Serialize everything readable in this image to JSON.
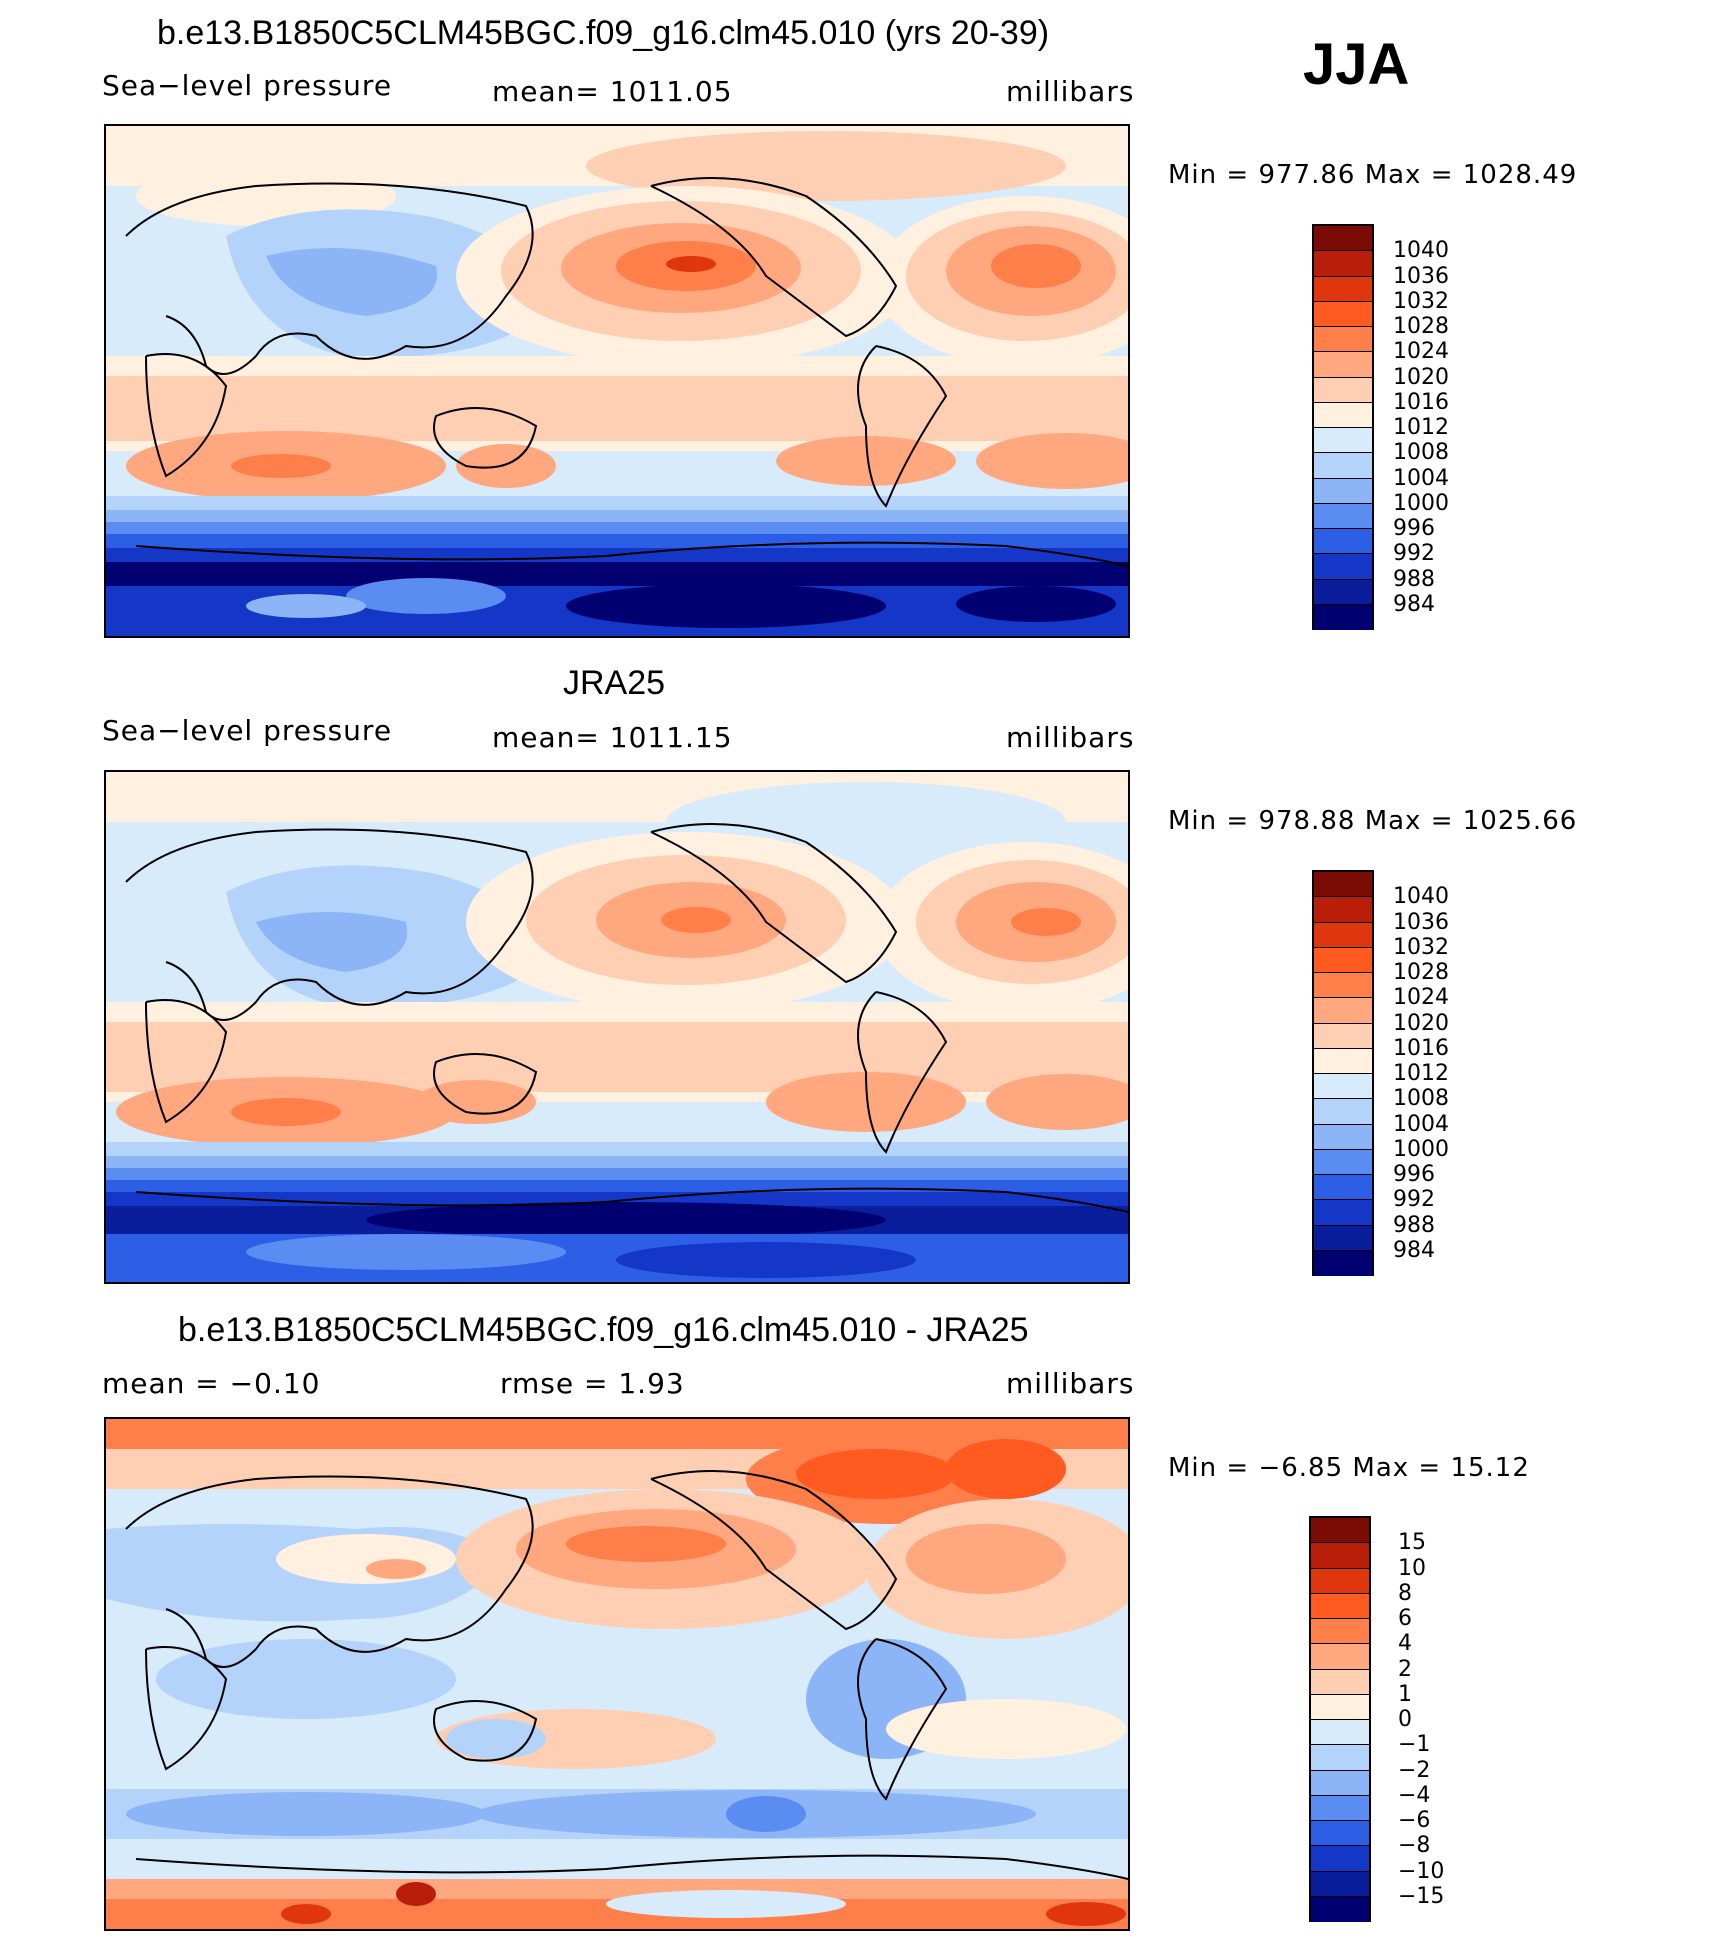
{
  "season_label": "JJA",
  "panels": [
    {
      "title": "b.e13.B1850C5CLM45BGC.f09_g16.clm45.010 (yrs 20-39)",
      "left_label": "Sea−level pressure",
      "center_label": "mean=  1011.05",
      "right_label": "millibars",
      "minmax": "Min  =  977.86  Max  =  1028.49"
    },
    {
      "title": "JRA25",
      "left_label": "Sea−level pressure",
      "center_label": "mean=  1011.15",
      "right_label": "millibars",
      "minmax": "Min  =  978.88  Max  =  1025.66"
    },
    {
      "title": "b.e13.B1850C5CLM45BGC.f09_g16.clm45.010 - JRA25",
      "left_label": "mean  =    −0.10",
      "center_label": "rmse  =     1.93",
      "right_label": "millibars",
      "minmax": "Min  =    −6.85  Max  =    15.12"
    }
  ],
  "colorbars": {
    "pressure": {
      "labels": [
        "1040",
        "1036",
        "1032",
        "1028",
        "1024",
        "1020",
        "1016",
        "1012",
        "1008",
        "1004",
        "1000",
        "996",
        "992",
        "988",
        "984"
      ],
      "colors": [
        "#7a0c05",
        "#b81e0a",
        "#e0360e",
        "#ff5a20",
        "#ff7f4a",
        "#ffa880",
        "#ffcfb4",
        "#fff0e0",
        "#d7ebfb",
        "#b4d3fa",
        "#8cb5f7",
        "#5a8cf2",
        "#2d5fe6",
        "#1437c8",
        "#0a1e9b",
        "#000070"
      ]
    },
    "difference": {
      "labels": [
        "15",
        "10",
        "8",
        "6",
        "4",
        "2",
        "1",
        "0",
        "−1",
        "−2",
        "−4",
        "−6",
        "−8",
        "−10",
        "−15"
      ],
      "colors": [
        "#7a0c05",
        "#b81e0a",
        "#e0360e",
        "#ff5a20",
        "#ff7f4a",
        "#ffa880",
        "#ffcfb4",
        "#fff0e0",
        "#d7ebfb",
        "#b4d3fa",
        "#8cb5f7",
        "#5a8cf2",
        "#2d5fe6",
        "#1437c8",
        "#0a1e9b",
        "#000070"
      ]
    }
  }
}
